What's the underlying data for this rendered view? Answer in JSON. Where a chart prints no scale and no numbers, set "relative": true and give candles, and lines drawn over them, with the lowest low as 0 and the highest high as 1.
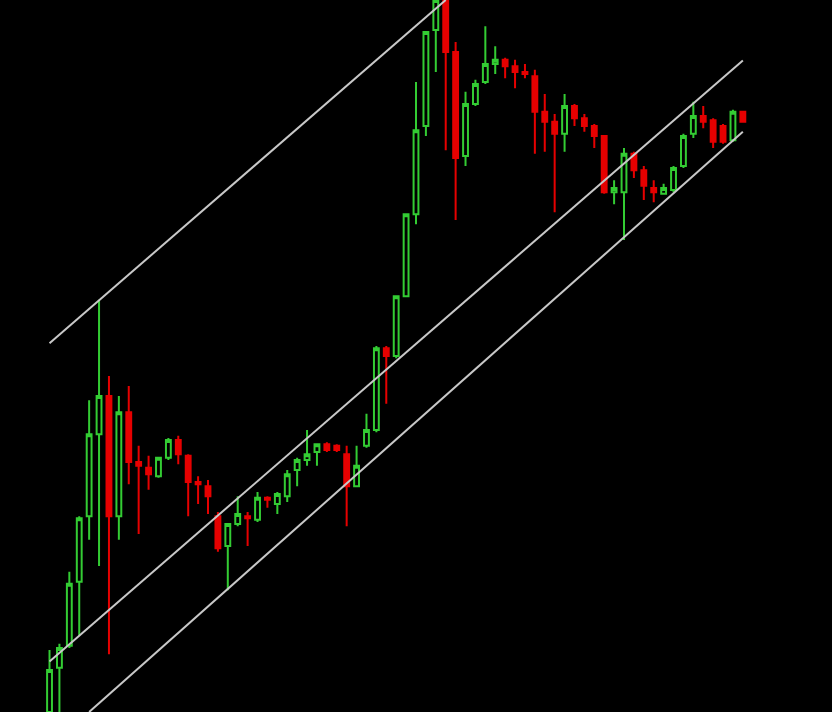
{
  "chart_data": {
    "type": "candlestick",
    "relative": true,
    "categories": [
      null,
      null,
      null,
      null,
      null,
      null,
      null,
      null,
      null,
      null,
      null,
      null,
      null,
      null,
      null,
      null,
      null,
      null,
      null,
      null,
      null,
      null,
      null,
      null,
      null,
      null,
      null,
      null,
      null,
      null,
      null,
      null,
      null,
      null,
      null,
      null,
      null,
      null,
      null,
      null,
      null,
      null,
      null,
      null,
      null,
      null,
      null,
      null,
      null,
      null,
      null,
      null,
      null,
      null,
      null,
      null,
      null,
      null,
      null,
      null,
      null,
      null,
      null,
      null,
      null,
      null,
      null,
      null,
      null,
      null,
      null
    ],
    "ohlc": [
      [
        0,
        0.087,
        0,
        0.059
      ],
      [
        0.062,
        0.096,
        0,
        0.09
      ],
      [
        0.093,
        0.197,
        0.09,
        0.18
      ],
      [
        0.183,
        0.275,
        0.107,
        0.272
      ],
      [
        0.275,
        0.438,
        0.242,
        0.39
      ],
      [
        0.39,
        0.579,
        0.205,
        0.444
      ],
      [
        0.444,
        0.472,
        0.081,
        0.275
      ],
      [
        0.275,
        0.444,
        0.242,
        0.421
      ],
      [
        0.421,
        0.458,
        0.32,
        0.351
      ],
      [
        0.351,
        0.374,
        0.25,
        0.346
      ],
      [
        0.343,
        0.36,
        0.312,
        0.334
      ],
      [
        0.331,
        0.357,
        0.329,
        0.357
      ],
      [
        0.357,
        0.385,
        0.354,
        0.382
      ],
      [
        0.382,
        0.388,
        0.348,
        0.362
      ],
      [
        0.36,
        0.362,
        0.275,
        0.323
      ],
      [
        0.323,
        0.331,
        0.292,
        0.32
      ],
      [
        0.317,
        0.326,
        0.278,
        0.303
      ],
      [
        0.275,
        0.281,
        0.225,
        0.23
      ],
      [
        0.233,
        0.264,
        0.171,
        0.264
      ],
      [
        0.264,
        0.303,
        0.261,
        0.278
      ],
      [
        0.275,
        0.281,
        0.233,
        0.272
      ],
      [
        0.27,
        0.309,
        0.267,
        0.301
      ],
      [
        0.301,
        0.303,
        0.287,
        0.298
      ],
      [
        0.292,
        0.309,
        0.278,
        0.306
      ],
      [
        0.303,
        0.34,
        0.295,
        0.334
      ],
      [
        0.34,
        0.357,
        0.317,
        0.354
      ],
      [
        0.354,
        0.396,
        0.346,
        0.362
      ],
      [
        0.365,
        0.376,
        0.346,
        0.376
      ],
      [
        0.376,
        0.379,
        0.365,
        0.368
      ],
      [
        0.374,
        0.376,
        0.365,
        0.368
      ],
      [
        0.362,
        0.374,
        0.261,
        0.317
      ],
      [
        0.317,
        0.374,
        0.317,
        0.346
      ],
      [
        0.374,
        0.419,
        0.371,
        0.396
      ],
      [
        0.396,
        0.514,
        0.393,
        0.511
      ],
      [
        0.511,
        0.514,
        0.433,
        0.5
      ],
      [
        0.5,
        0.584,
        0.497,
        0.584
      ],
      [
        0.584,
        0.699,
        0.584,
        0.699
      ],
      [
        0.699,
        0.885,
        0.685,
        0.817
      ],
      [
        0.823,
        0.955,
        0.809,
        0.955
      ],
      [
        0.958,
        1,
        0.899,
        1
      ],
      [
        1,
        1,
        0.789,
        0.927
      ],
      [
        0.927,
        0.941,
        0.691,
        0.778
      ],
      [
        0.781,
        0.871,
        0.767,
        0.854
      ],
      [
        0.854,
        0.888,
        0.851,
        0.882
      ],
      [
        0.885,
        0.963,
        0.882,
        0.91
      ],
      [
        0.91,
        0.935,
        0.896,
        0.916
      ],
      [
        0.916,
        0.919,
        0.89,
        0.907
      ],
      [
        0.907,
        0.916,
        0.876,
        0.899
      ],
      [
        0.899,
        0.91,
        0.89,
        0.896
      ],
      [
        0.893,
        0.902,
        0.784,
        0.843
      ],
      [
        0.843,
        0.868,
        0.787,
        0.829
      ],
      [
        0.829,
        0.84,
        0.702,
        0.812
      ],
      [
        0.812,
        0.868,
        0.787,
        0.851
      ],
      [
        0.851,
        0.854,
        0.823,
        0.834
      ],
      [
        0.834,
        0.84,
        0.815,
        0.823
      ],
      [
        0.823,
        0.826,
        0.792,
        0.809
      ],
      [
        0.809,
        0.809,
        0.728,
        0.73
      ],
      [
        0.73,
        0.747,
        0.713,
        0.736
      ],
      [
        0.73,
        0.792,
        0.663,
        0.784
      ],
      [
        0.784,
        0.787,
        0.75,
        0.761
      ],
      [
        0.761,
        0.767,
        0.719,
        0.739
      ],
      [
        0.736,
        0.747,
        0.716,
        0.73
      ],
      [
        0.728,
        0.742,
        0.728,
        0.736
      ],
      [
        0.733,
        0.767,
        0.73,
        0.764
      ],
      [
        0.767,
        0.812,
        0.764,
        0.809
      ],
      [
        0.812,
        0.857,
        0.806,
        0.837
      ],
      [
        0.837,
        0.851,
        0.82,
        0.829
      ],
      [
        0.831,
        0.834,
        0.792,
        0.801
      ],
      [
        0.823,
        0.826,
        0.798,
        0.801
      ],
      [
        0.803,
        0.846,
        0.801,
        0.843
      ],
      [
        0.843,
        0.843,
        0.829,
        0.829
      ]
    ],
    "colors": [
      "#33cc33",
      "#33cc33",
      "#33cc33",
      "#33cc33",
      "#33cc33",
      "#33cc33",
      "#e60000",
      "#33cc33",
      "#e60000",
      "#e60000",
      "#e60000",
      "#33cc33",
      "#33cc33",
      "#e60000",
      "#e60000",
      "#e60000",
      "#e60000",
      "#e60000",
      "#33cc33",
      "#33cc33",
      "#e60000",
      "#33cc33",
      "#e60000",
      "#33cc33",
      "#33cc33",
      "#33cc33",
      "#33cc33",
      "#33cc33",
      "#e60000",
      "#e60000",
      "#e60000",
      "#33cc33",
      "#33cc33",
      "#33cc33",
      "#e60000",
      "#33cc33",
      "#33cc33",
      "#33cc33",
      "#33cc33",
      "#33cc33",
      "#e60000",
      "#e60000",
      "#33cc33",
      "#33cc33",
      "#33cc33",
      "#33cc33",
      "#e60000",
      "#e60000",
      "#e60000",
      "#e60000",
      "#e60000",
      "#e60000",
      "#33cc33",
      "#e60000",
      "#e60000",
      "#e60000",
      "#e60000",
      "#33cc33",
      "#33cc33",
      "#e60000",
      "#e60000",
      "#e60000",
      "#33cc33",
      "#33cc33",
      "#33cc33",
      "#33cc33",
      "#e60000",
      "#e60000",
      "#e60000",
      "#33cc33",
      "#e60000"
    ],
    "series": [
      {
        "type": "line",
        "color": "#c8c8c8",
        "values": [
          0.518,
          null,
          null,
          null,
          null,
          null,
          null,
          null,
          null,
          null,
          null,
          null,
          null,
          null,
          null,
          null,
          null,
          null,
          null,
          null,
          null,
          null,
          null,
          null,
          null,
          null,
          null,
          null,
          null,
          null,
          null,
          null,
          null,
          null,
          null,
          null,
          null,
          null,
          null,
          null,
          1,
          null,
          null,
          null,
          null,
          null,
          null,
          null,
          null,
          null,
          null,
          null,
          null,
          null,
          null,
          null,
          null,
          null,
          null,
          null,
          null,
          null,
          null,
          null,
          null,
          null,
          null,
          null,
          null,
          null,
          null
        ]
      },
      {
        "type": "line",
        "color": "#c8c8c8",
        "values": [
          0.071,
          null,
          null,
          null,
          null,
          null,
          null,
          null,
          null,
          null,
          null,
          null,
          null,
          null,
          null,
          null,
          null,
          null,
          null,
          null,
          null,
          null,
          null,
          null,
          null,
          null,
          null,
          null,
          null,
          null,
          null,
          null,
          null,
          null,
          null,
          null,
          null,
          null,
          null,
          null,
          null,
          null,
          null,
          null,
          null,
          null,
          null,
          null,
          null,
          null,
          null,
          null,
          null,
          null,
          null,
          null,
          null,
          null,
          null,
          null,
          null,
          null,
          null,
          null,
          null,
          null,
          null,
          null,
          null,
          null,
          0.915
        ]
      },
      {
        "type": "line",
        "color": "#c8c8c8",
        "values": [
          null,
          null,
          null,
          null,
          0,
          null,
          null,
          null,
          null,
          null,
          null,
          null,
          null,
          null,
          null,
          null,
          null,
          null,
          null,
          null,
          null,
          null,
          null,
          null,
          null,
          null,
          null,
          null,
          null,
          null,
          null,
          null,
          null,
          null,
          null,
          null,
          null,
          null,
          null,
          null,
          null,
          null,
          null,
          null,
          null,
          null,
          null,
          null,
          null,
          null,
          null,
          null,
          null,
          null,
          null,
          null,
          null,
          null,
          null,
          null,
          null,
          null,
          null,
          null,
          null,
          null,
          null,
          null,
          null,
          null,
          0.815
        ]
      }
    ]
  }
}
